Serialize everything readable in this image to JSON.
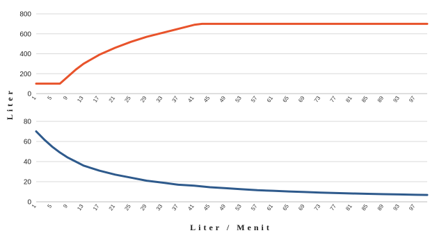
{
  "chart_data": [
    {
      "type": "line",
      "ylabel": "Liter",
      "xlabel": "",
      "ylim": [
        0,
        800
      ],
      "yticks": [
        0,
        200,
        400,
        600,
        800
      ],
      "grid": true,
      "legend": "none",
      "xticks": [
        "1",
        "5",
        "9",
        "13",
        "17",
        "21",
        "25",
        "29",
        "33",
        "37",
        "41",
        "45",
        "49",
        "53",
        "57",
        "61",
        "65",
        "69",
        "73",
        "77",
        "81",
        "85",
        "89",
        "93",
        "97"
      ],
      "series": [
        {
          "color": "#e8532b",
          "x": [
            1,
            7,
            9,
            11,
            13,
            17,
            21,
            25,
            29,
            33,
            37,
            41,
            43,
            45,
            49,
            53,
            57,
            61,
            65,
            69,
            73,
            77,
            81,
            85,
            89,
            93,
            97,
            100
          ],
          "values": [
            100,
            100,
            170,
            240,
            300,
            390,
            460,
            520,
            570,
            610,
            650,
            690,
            700,
            700,
            700,
            700,
            700,
            700,
            700,
            700,
            700,
            700,
            700,
            700,
            700,
            700,
            700,
            700
          ]
        }
      ]
    },
    {
      "type": "line",
      "ylabel": "",
      "xlabel": "Liter / Menit",
      "ylim": [
        0,
        80
      ],
      "yticks": [
        0,
        20,
        40,
        60,
        80
      ],
      "grid": true,
      "legend": "none",
      "xticks": [
        "1",
        "5",
        "9",
        "13",
        "17",
        "21",
        "25",
        "29",
        "33",
        "37",
        "41",
        "45",
        "49",
        "53",
        "57",
        "61",
        "65",
        "69",
        "73",
        "77",
        "81",
        "85",
        "89",
        "93",
        "97"
      ],
      "series": [
        {
          "color": "#2e5a8c",
          "x": [
            1,
            3,
            5,
            7,
            9,
            11,
            13,
            17,
            21,
            25,
            29,
            33,
            37,
            41,
            45,
            49,
            53,
            57,
            61,
            65,
            69,
            73,
            77,
            81,
            85,
            89,
            93,
            97,
            100
          ],
          "values": [
            70,
            62,
            55,
            49,
            44,
            40,
            36,
            31,
            27,
            24,
            21,
            19,
            17,
            16,
            14.5,
            13.5,
            12.5,
            11.5,
            11,
            10.3,
            9.7,
            9.2,
            8.7,
            8.3,
            7.9,
            7.6,
            7.3,
            7,
            6.8
          ]
        }
      ]
    }
  ]
}
